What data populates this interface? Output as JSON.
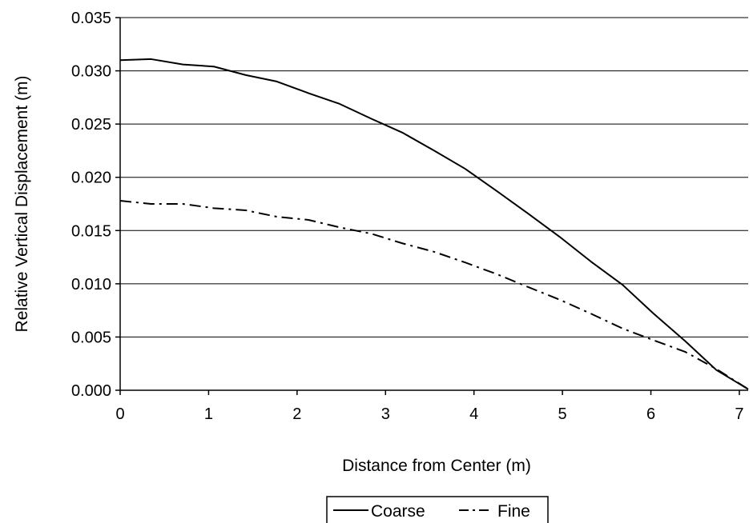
{
  "chart_data": {
    "type": "line",
    "title": "",
    "xlabel": "Distance from Center (m)",
    "ylabel": "Relative Vertical Displacement (m)",
    "xlim": [
      0,
      7.1
    ],
    "ylim": [
      0,
      0.035
    ],
    "grid": "horizontal",
    "legend_position": "bottom-center",
    "xticks": [
      "0",
      "1",
      "2",
      "3",
      "4",
      "5",
      "6",
      "7"
    ],
    "yticks": [
      "0.000",
      "0.005",
      "0.010",
      "0.015",
      "0.020",
      "0.025",
      "0.030",
      "0.035"
    ],
    "series": [
      {
        "name": "Coarse",
        "style": "solid",
        "color": "#000000",
        "x": [
          0,
          0.35,
          0.71,
          1.06,
          1.42,
          1.77,
          2.13,
          2.48,
          2.84,
          3.19,
          3.55,
          3.9,
          4.26,
          4.61,
          4.97,
          5.32,
          5.68,
          6.03,
          6.39,
          6.74,
          7.1
        ],
        "y": [
          0.031,
          0.0311,
          0.0306,
          0.0304,
          0.0296,
          0.029,
          0.0279,
          0.0269,
          0.0255,
          0.0242,
          0.0225,
          0.0208,
          0.0187,
          0.0166,
          0.0144,
          0.0121,
          0.0099,
          0.0072,
          0.0046,
          0.0019,
          0.0001
        ]
      },
      {
        "name": "Fine",
        "style": "dash-dot",
        "color": "#000000",
        "x": [
          0,
          0.35,
          0.71,
          1.06,
          1.42,
          1.77,
          2.13,
          2.48,
          2.84,
          3.19,
          3.55,
          3.9,
          4.26,
          4.61,
          4.97,
          5.32,
          5.68,
          6.03,
          6.39,
          6.74,
          7.1
        ],
        "y": [
          0.0178,
          0.0175,
          0.0175,
          0.0171,
          0.0169,
          0.0163,
          0.016,
          0.0153,
          0.0147,
          0.0138,
          0.013,
          0.012,
          0.0109,
          0.0097,
          0.0085,
          0.0072,
          0.0058,
          0.0047,
          0.0036,
          0.002,
          0.0001
        ]
      }
    ]
  }
}
